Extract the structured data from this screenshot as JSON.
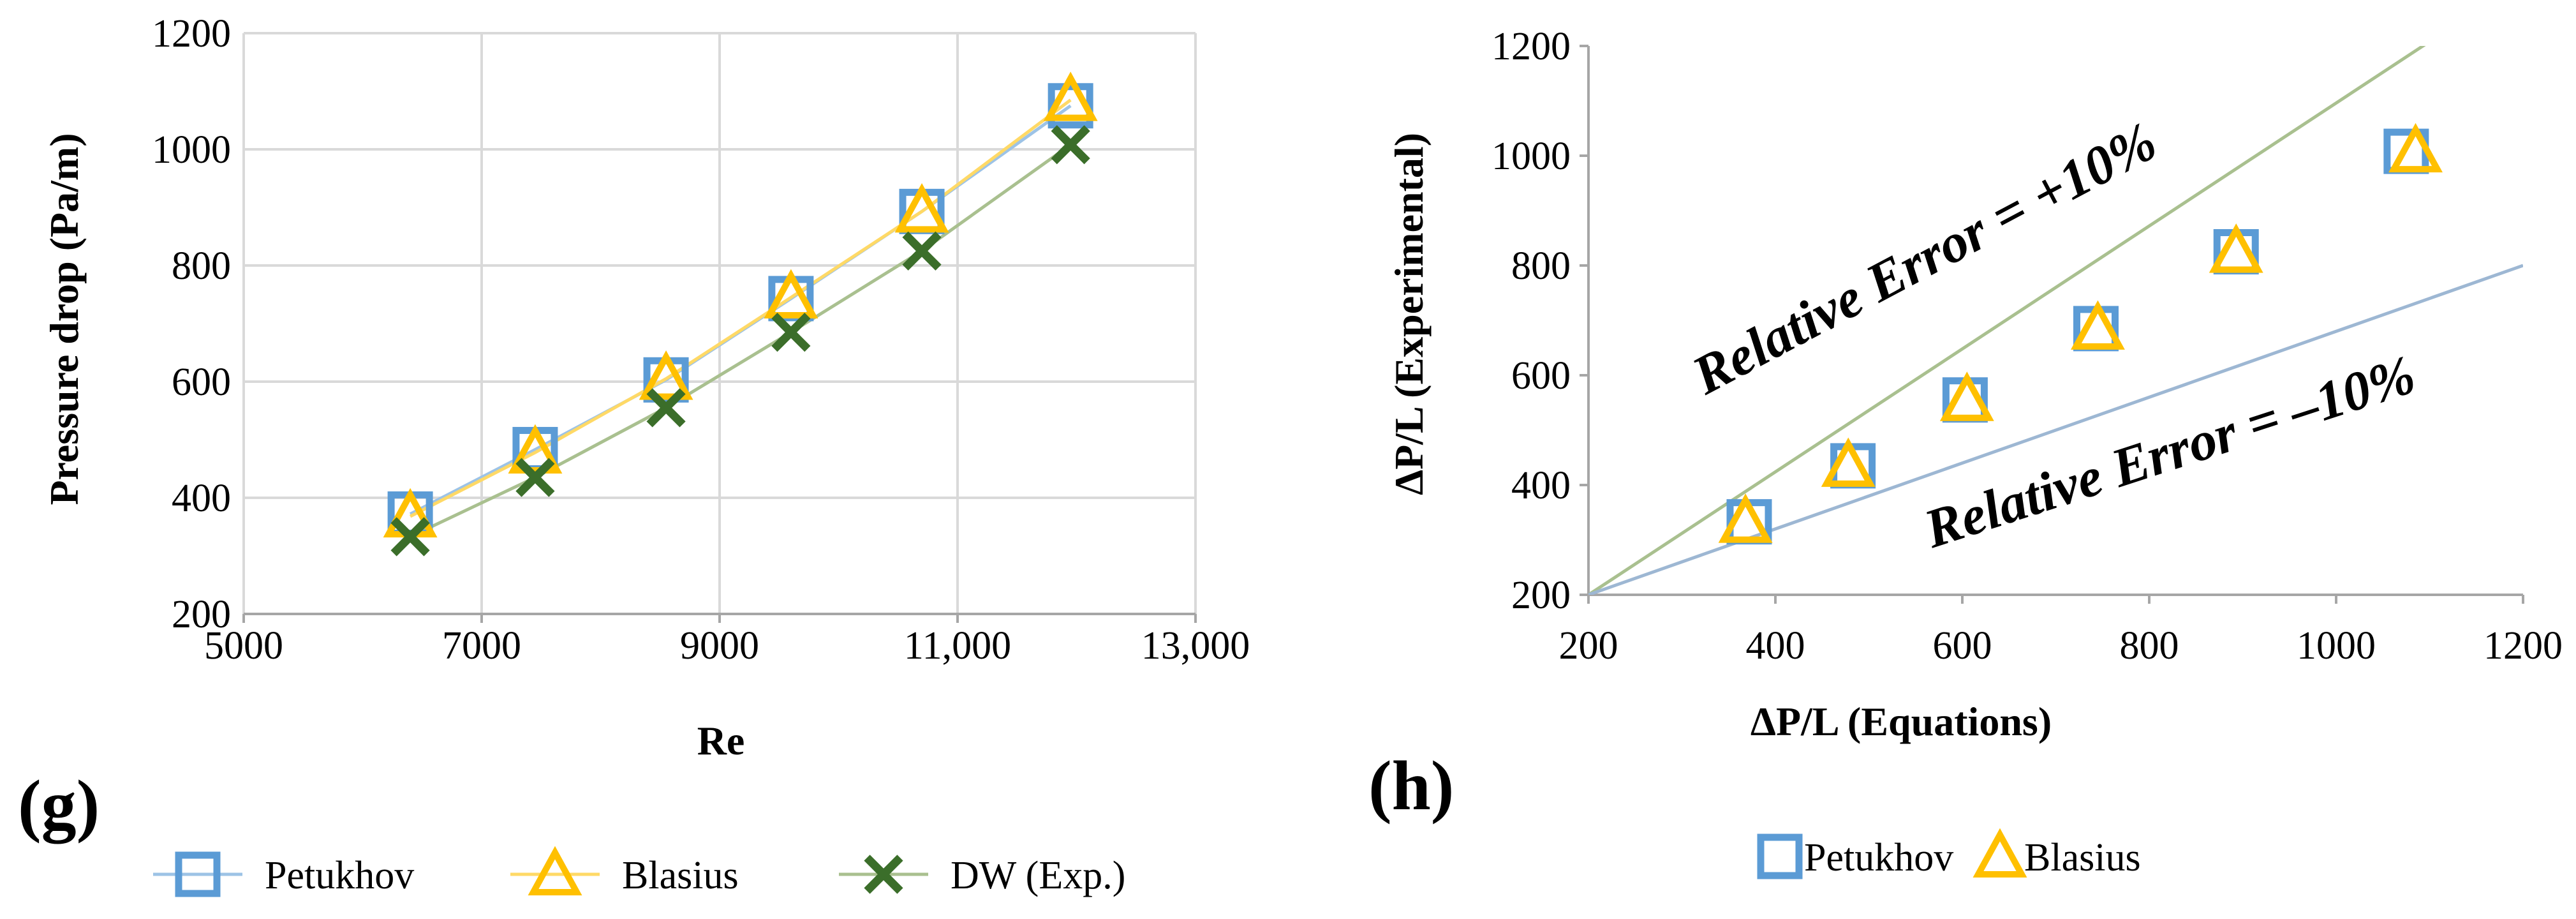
{
  "chart_data": [
    {
      "type": "line",
      "panel_label": "(g)",
      "xlabel": "Re",
      "ylabel": "Pressure drop (Pa/m)",
      "xlim": [
        5000,
        13000
      ],
      "ylim": [
        200,
        1200
      ],
      "x_ticks": [
        {
          "value": 5000,
          "label": "5000"
        },
        {
          "value": 7000,
          "label": "7000"
        },
        {
          "value": 9000,
          "label": "9000"
        },
        {
          "value": 11000,
          "label": "11,000"
        },
        {
          "value": 13000,
          "label": "13,000"
        }
      ],
      "y_ticks": [
        {
          "value": 200,
          "label": "200"
        },
        {
          "value": 400,
          "label": "400"
        },
        {
          "value": 600,
          "label": "600"
        },
        {
          "value": 800,
          "label": "800"
        },
        {
          "value": 1000,
          "label": "1000"
        },
        {
          "value": 1200,
          "label": "1200"
        }
      ],
      "grid": true,
      "legend_position": "bottom",
      "series": [
        {
          "name": "Petukhov",
          "marker": "square",
          "color": "#5b9bd5",
          "line_color": "#9dc3e6",
          "x": [
            6400,
            7450,
            8550,
            9600,
            10700,
            11950
          ],
          "y": [
            372,
            483,
            603,
            743,
            893,
            1075
          ]
        },
        {
          "name": "Blasius",
          "marker": "triangle",
          "color": "#ffc000",
          "line_color": "#ffd966",
          "x": [
            6400,
            7450,
            8550,
            9600,
            10700,
            11950
          ],
          "y": [
            368,
            478,
            605,
            745,
            893,
            1085
          ]
        },
        {
          "name": "DW (Exp.)",
          "marker": "x",
          "color": "#3b6e2a",
          "line_color": "#a9c08f",
          "x": [
            6400,
            7450,
            8550,
            9600,
            10700,
            11950
          ],
          "y": [
            333,
            435,
            555,
            685,
            825,
            1008
          ]
        }
      ]
    },
    {
      "type": "scatter",
      "panel_label": "(h)",
      "xlabel": "ΔP/L (Equations)",
      "ylabel": "ΔP/L (Experimental)",
      "xlim": [
        200,
        1200
      ],
      "ylim": [
        200,
        1200
      ],
      "x_ticks": [
        {
          "value": 200,
          "label": "200"
        },
        {
          "value": 400,
          "label": "400"
        },
        {
          "value": 600,
          "label": "600"
        },
        {
          "value": 800,
          "label": "800"
        },
        {
          "value": 1000,
          "label": "1000"
        },
        {
          "value": 1200,
          "label": "1200"
        }
      ],
      "y_ticks": [
        {
          "value": 200,
          "label": "200"
        },
        {
          "value": 400,
          "label": "400"
        },
        {
          "value": 600,
          "label": "600"
        },
        {
          "value": 800,
          "label": "800"
        },
        {
          "value": 1000,
          "label": "1000"
        },
        {
          "value": 1200,
          "label": "1200"
        }
      ],
      "grid": false,
      "legend_position": "bottom",
      "series": [
        {
          "name": "Petukhov",
          "marker": "square",
          "color": "#5b9bd5",
          "x": [
            372,
            483,
            603,
            743,
            893,
            1075
          ],
          "y": [
            333,
            435,
            555,
            685,
            825,
            1008
          ]
        },
        {
          "name": "Blasius",
          "marker": "triangle",
          "color": "#ffc000",
          "x": [
            368,
            478,
            605,
            745,
            893,
            1085
          ],
          "y": [
            333,
            435,
            555,
            685,
            825,
            1008
          ]
        }
      ],
      "reference_lines": [
        {
          "name": "plus10",
          "label": "Relative Error = +10%",
          "color": "#a9c08f",
          "x": [
            200,
            1200
          ],
          "y": [
            200,
            1320
          ]
        },
        {
          "name": "minus10",
          "label": "Relative Error = –10%",
          "color": "#9db7d3",
          "x": [
            200,
            1200
          ],
          "y": [
            200,
            800
          ]
        }
      ]
    }
  ]
}
